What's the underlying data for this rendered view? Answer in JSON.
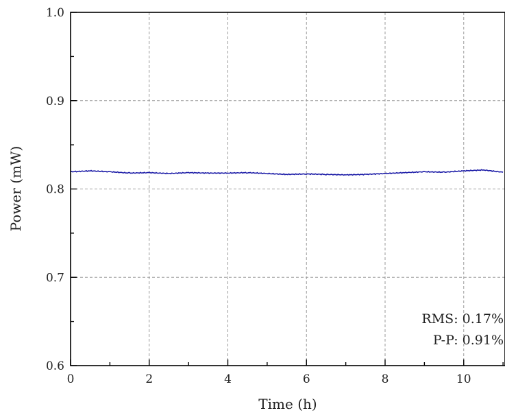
{
  "chart_data": {
    "type": "line",
    "title": "",
    "xlabel": "Time (h)",
    "ylabel": "Power (mW)",
    "xlim": [
      0,
      11.05
    ],
    "ylim": [
      0.6,
      1.0
    ],
    "xticks": [
      0,
      2,
      4,
      6,
      8,
      10
    ],
    "yticks": [
      0.6,
      0.7,
      0.8,
      0.9,
      1.0
    ],
    "xtick_labels": [
      "0",
      "2",
      "4",
      "6",
      "8",
      "10"
    ],
    "ytick_labels": [
      "0.6",
      "0.7",
      "0.8",
      "0.9",
      "1.0"
    ],
    "grid": true,
    "series": [
      {
        "color": "#1f1fa8",
        "x": [
          0,
          0.5,
          1.0,
          1.5,
          2.0,
          2.5,
          3.0,
          3.5,
          4.0,
          4.5,
          5.0,
          5.5,
          6.0,
          6.5,
          7.0,
          7.5,
          8.0,
          8.5,
          9.0,
          9.5,
          10.0,
          10.5,
          11.0
        ],
        "values": [
          0.8195,
          0.8205,
          0.8195,
          0.818,
          0.8185,
          0.8175,
          0.8185,
          0.818,
          0.818,
          0.8185,
          0.8175,
          0.8165,
          0.817,
          0.8165,
          0.816,
          0.8165,
          0.8175,
          0.8185,
          0.8195,
          0.819,
          0.8205,
          0.8215,
          0.819
        ]
      }
    ],
    "annotations": [
      "RMS: 0.17%",
      "P-P: 0.91%"
    ]
  }
}
